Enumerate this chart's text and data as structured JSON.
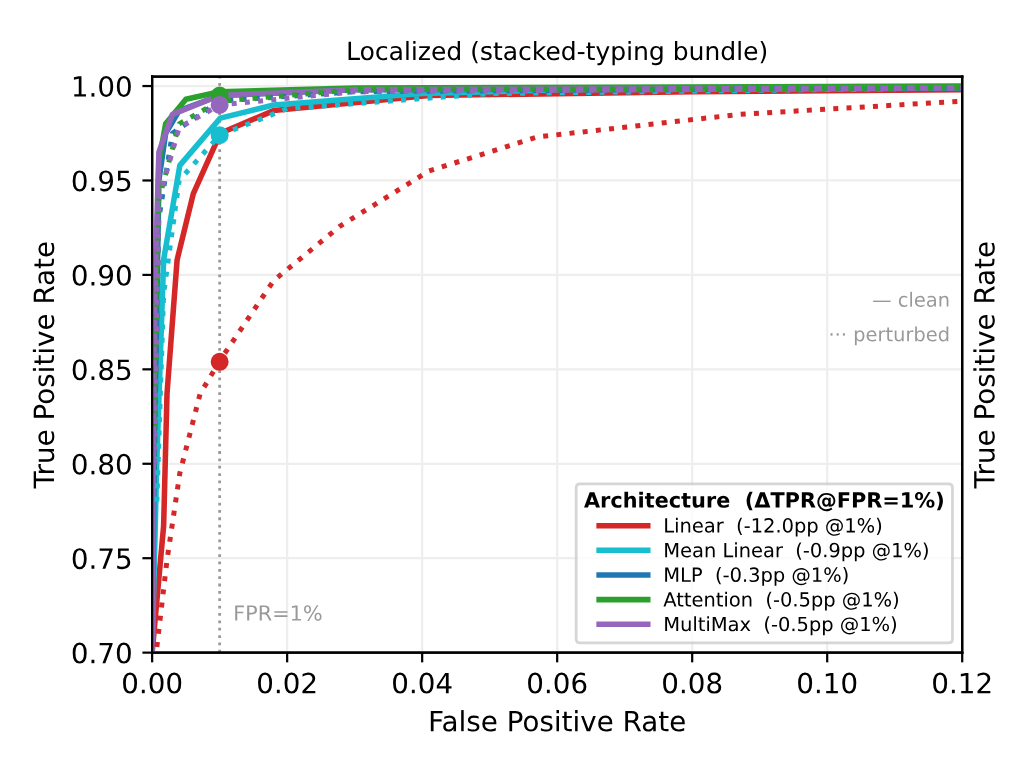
{
  "chart_data": {
    "type": "line",
    "title": "Localized (stacked-typing bundle)",
    "xlabel": "False Positive Rate",
    "ylabel": "True Positive Rate",
    "y2label": "True Positive Rate",
    "legend_title": "Architecture  (ΔTPR@FPR=1%)",
    "legend": "bottom right",
    "grid": true,
    "xlim": [
      0,
      0.12
    ],
    "xticks": [
      {
        "value": 0,
        "label": "0.00"
      },
      {
        "value": 0.02,
        "label": "0.02"
      },
      {
        "value": 0.04,
        "label": "0.04"
      },
      {
        "value": 0.06,
        "label": "0.06"
      },
      {
        "value": 0.08,
        "label": "0.08"
      },
      {
        "value": 0.1,
        "label": "0.10"
      },
      {
        "value": 0.12,
        "label": "0.12"
      }
    ],
    "ylim": [
      0.7,
      1.005
    ],
    "yticks": [
      {
        "value": 0.7,
        "label": "0.70"
      },
      {
        "value": 0.75,
        "label": "0.75"
      },
      {
        "value": 0.8,
        "label": "0.80"
      },
      {
        "value": 0.85,
        "label": "0.85"
      },
      {
        "value": 0.9,
        "label": "0.90"
      },
      {
        "value": 0.95,
        "label": "0.95"
      },
      {
        "value": 1.0,
        "label": "1.00"
      }
    ],
    "ref_lines": [
      {
        "axis": "x",
        "value": 0.01,
        "label": "FPR=1%",
        "color": "#999999",
        "line_style": "dotted"
      }
    ],
    "annotations": [
      "— clean",
      "··· perturbed"
    ],
    "series": [
      {
        "name": "Linear  (-12.0pp @1%)",
        "color": "#d62728",
        "line_style": "solid",
        "x": [
          0,
          0.0017,
          0.0022,
          0.0037,
          0.0061,
          0.0101,
          0.018,
          0.041,
          0.08,
          0.12
        ],
        "values": [
          0.7,
          0.767,
          0.837,
          0.908,
          0.943,
          0.975,
          0.987,
          0.995,
          0.997,
          0.998
        ]
      },
      {
        "name": "Mean Linear  (-0.9pp @1%)",
        "color": "#17becf",
        "line_style": "solid",
        "x": [
          0,
          0.0007,
          0.0017,
          0.0041,
          0.0101,
          0.018,
          0.04,
          0.06,
          0.12
        ],
        "values": [
          0.7,
          0.802,
          0.908,
          0.958,
          0.983,
          0.99,
          0.996,
          0.998,
          0.999
        ]
      },
      {
        "name": "MLP  (-0.3pp @1%)",
        "color": "#1f77b4",
        "line_style": "solid",
        "x": [
          0,
          0.0003,
          0.001,
          0.002,
          0.004,
          0.01,
          0.03,
          0.12
        ],
        "values": [
          0.7,
          0.8,
          0.95,
          0.975,
          0.987,
          0.995,
          0.998,
          0.999
        ]
      },
      {
        "name": "Attention  (-0.5pp @1%)",
        "color": "#2ca02c",
        "line_style": "solid",
        "x": [
          0,
          0.0003,
          0.001,
          0.002,
          0.005,
          0.01,
          0.03,
          0.12
        ],
        "values": [
          0.7,
          0.85,
          0.96,
          0.98,
          0.993,
          0.997,
          0.999,
          1.0
        ]
      },
      {
        "name": "MultiMax  (-0.5pp @1%)",
        "color": "#9467bd",
        "line_style": "solid",
        "x": [
          0,
          0.0003,
          0.001,
          0.003,
          0.01,
          0.03,
          0.12
        ],
        "values": [
          0.7,
          0.88,
          0.965,
          0.985,
          0.995,
          0.998,
          0.999
        ]
      },
      {
        "color": "#d62728",
        "line_style": "dotted",
        "x": [
          0.0007,
          0.0022,
          0.0041,
          0.0071,
          0.0101,
          0.018,
          0.0279,
          0.041,
          0.057,
          0.087,
          0.12
        ],
        "values": [
          0.703,
          0.749,
          0.795,
          0.837,
          0.855,
          0.897,
          0.926,
          0.955,
          0.973,
          0.985,
          0.992
        ]
      },
      {
        "color": "#17becf",
        "line_style": "dotted",
        "x": [
          0.0007,
          0.0017,
          0.004,
          0.01,
          0.02,
          0.05,
          0.12
        ],
        "values": [
          0.78,
          0.89,
          0.95,
          0.974,
          0.988,
          0.996,
          0.999
        ]
      },
      {
        "color": "#1f77b4",
        "line_style": "dotted",
        "x": [
          0.0003,
          0.001,
          0.003,
          0.01,
          0.03,
          0.12
        ],
        "values": [
          0.8,
          0.93,
          0.975,
          0.992,
          0.997,
          0.999
        ]
      },
      {
        "color": "#2ca02c",
        "line_style": "dotted",
        "x": [
          0.0004,
          0.001,
          0.004,
          0.01,
          0.03,
          0.12
        ],
        "values": [
          0.82,
          0.94,
          0.98,
          0.992,
          0.998,
          0.999
        ]
      },
      {
        "color": "#9467bd",
        "line_style": "dotted",
        "x": [
          0.0003,
          0.001,
          0.004,
          0.01,
          0.03,
          0.12
        ],
        "values": [
          0.8,
          0.94,
          0.978,
          0.99,
          0.997,
          0.999
        ]
      },
      {
        "type": "scatter",
        "marker": "circle",
        "x": [
          0.01,
          0.01,
          0.01,
          0.01
        ],
        "values": [
          0.854,
          0.974,
          0.995,
          0.99
        ],
        "colors": [
          "#d62728",
          "#17becf",
          "#2ca02c",
          "#9467bd"
        ]
      }
    ]
  }
}
